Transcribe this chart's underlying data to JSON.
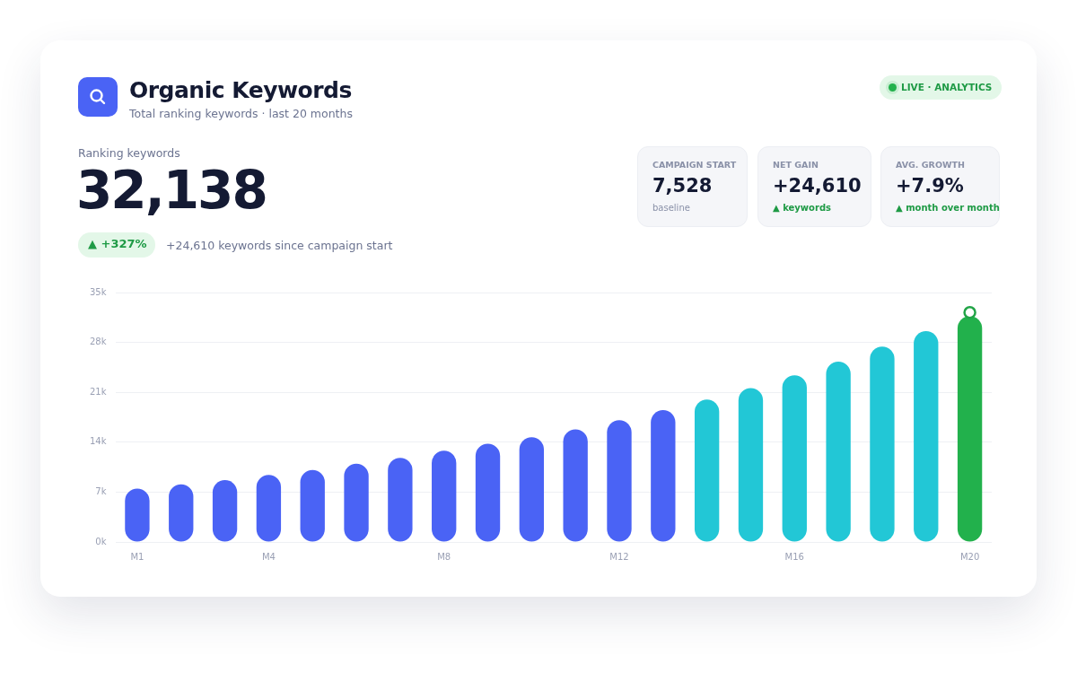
{
  "chart_data": {
    "type": "bar",
    "title": "Organic Keywords",
    "subtitle": "Total ranking keywords · last 20 months",
    "annotations": [
      "LIVE · ANALYTICS",
      "Ranking keywords",
      "32,138",
      "▲ +327%",
      "+24,610 keywords since campaign start",
      "CAMPAIGN START",
      "7,528",
      "baseline",
      "NET GAIN",
      "+24,610",
      "▲ keywords",
      "AVG. GROWTH",
      "+7.9%",
      "▲ month over month"
    ],
    "categories": [
      "M1",
      null,
      null,
      "M4",
      null,
      null,
      null,
      "M8",
      null,
      null,
      null,
      "M12",
      null,
      null,
      null,
      "M16",
      null,
      null,
      null,
      "M20"
    ],
    "series": [
      {
        "values": [
          7500,
          8100,
          8700,
          9400,
          10100,
          11000,
          11800,
          12800,
          13800,
          14700,
          15800,
          17100,
          18500,
          20000,
          21600,
          23400,
          25300,
          27400,
          29600,
          31700
        ],
        "colors": [
          "#4a63f5",
          "#4a63f5",
          "#4a63f5",
          "#4a63f5",
          "#4a63f5",
          "#4a63f5",
          "#4a63f5",
          "#4a63f5",
          "#4a63f5",
          "#4a63f5",
          "#4a63f5",
          "#4a63f5",
          "#4a63f5",
          "#22c7d6",
          "#22c7d6",
          "#22c7d6",
          "#22c7d6",
          "#22c7d6",
          "#22c7d6",
          "#22b14c"
        ]
      },
      {
        "type": "scatter",
        "color": "#22a447",
        "marker": "circle",
        "values": [
          null,
          null,
          null,
          null,
          null,
          null,
          null,
          null,
          null,
          null,
          null,
          null,
          null,
          null,
          null,
          null,
          null,
          null,
          null,
          32200
        ]
      }
    ],
    "ylim": [
      0,
      35000
    ],
    "yticks": [
      {
        "value": 0,
        "label": "0k"
      },
      {
        "value": 7000,
        "label": "7k"
      },
      {
        "value": 14000,
        "label": "14k"
      },
      {
        "value": 21000,
        "label": "21k"
      },
      {
        "value": 28000,
        "label": "28k"
      },
      {
        "value": 35000,
        "label": "35k"
      }
    ],
    "grid": "y"
  }
}
